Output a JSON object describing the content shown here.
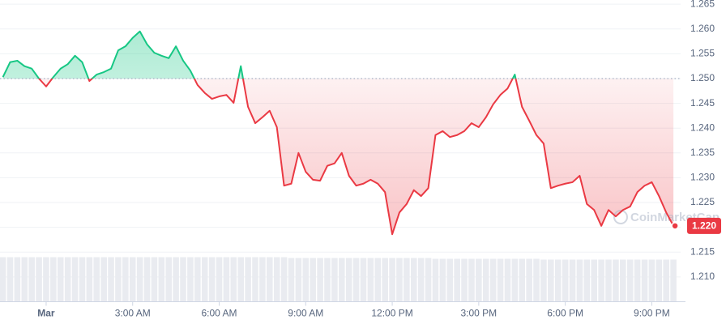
{
  "chart_data": {
    "type": "line",
    "baseline": 1.25,
    "watermark": "CoinMarketCap",
    "up_color": "#16c784",
    "down_color": "#ea3943",
    "volume_color": "#e9ebf0",
    "grid": true,
    "xlim": [
      -1.6,
      22
    ],
    "ylim": [
      1.205,
      1.266
    ],
    "xticks": [
      {
        "value": 0,
        "label": "Mar"
      },
      {
        "value": 3,
        "label": "3:00 AM"
      },
      {
        "value": 6,
        "label": "6:00 AM"
      },
      {
        "value": 9,
        "label": "9:00 AM"
      },
      {
        "value": 12,
        "label": "12:00 PM"
      },
      {
        "value": 15,
        "label": "3:00 PM"
      },
      {
        "value": 18,
        "label": "6:00 PM"
      },
      {
        "value": 21,
        "label": "9:00 PM"
      }
    ],
    "yticks": [
      {
        "value": 1.21,
        "label": "1.210"
      },
      1.215,
      {
        "value": 1.22,
        "label": "1.220"
      },
      1.225,
      {
        "value": 1.23,
        "label": "1.230"
      },
      1.235,
      {
        "value": 1.24,
        "label": "1.240"
      },
      1.245,
      {
        "value": 1.25,
        "label": "1.250"
      },
      1.255,
      {
        "value": 1.26,
        "label": "1.260"
      },
      1.265
    ],
    "current_price": {
      "value": 1.2203,
      "label": "1.220"
    },
    "x": [
      -1.5,
      -1.25,
      -1,
      -0.75,
      -0.5,
      -0.25,
      0,
      0.25,
      0.5,
      0.75,
      1,
      1.25,
      1.5,
      1.75,
      2,
      2.25,
      2.5,
      2.75,
      3,
      3.25,
      3.5,
      3.75,
      4,
      4.25,
      4.5,
      4.75,
      5,
      5.25,
      5.5,
      5.75,
      6,
      6.25,
      6.5,
      6.75,
      7,
      7.25,
      7.5,
      7.75,
      8,
      8.25,
      8.5,
      8.75,
      9,
      9.25,
      9.5,
      9.75,
      10,
      10.25,
      10.5,
      10.75,
      11,
      11.25,
      11.5,
      11.75,
      12,
      12.25,
      12.5,
      12.75,
      13,
      13.25,
      13.5,
      13.75,
      14,
      14.25,
      14.5,
      14.75,
      15,
      15.25,
      15.5,
      15.75,
      16,
      16.25,
      16.5,
      16.75,
      17,
      17.25,
      17.5,
      17.75,
      18,
      18.25,
      18.5,
      18.75,
      19,
      19.25,
      19.5,
      19.75,
      20,
      20.25,
      20.5,
      20.75,
      21,
      21.25,
      21.5,
      21.75
    ],
    "values": [
      1.2503,
      1.2533,
      1.2536,
      1.2525,
      1.252,
      1.25,
      1.2484,
      1.2503,
      1.252,
      1.2529,
      1.2546,
      1.2533,
      1.2495,
      1.2508,
      1.2513,
      1.252,
      1.2557,
      1.2565,
      1.2582,
      1.2595,
      1.2569,
      1.2552,
      1.2546,
      1.2541,
      1.2565,
      1.2536,
      1.2516,
      1.2487,
      1.2471,
      1.2459,
      1.2464,
      1.2467,
      1.2451,
      1.2525,
      1.2443,
      1.241,
      1.2422,
      1.2435,
      1.2402,
      1.2284,
      1.2288,
      1.235,
      1.2312,
      1.2296,
      1.2294,
      1.2324,
      1.2329,
      1.235,
      1.2304,
      1.2284,
      1.2288,
      1.2296,
      1.2288,
      1.2271,
      1.2186,
      1.223,
      1.2247,
      1.2275,
      1.2263,
      1.2279,
      1.2386,
      1.2394,
      1.2382,
      1.2386,
      1.2394,
      1.241,
      1.2402,
      1.2422,
      1.2448,
      1.2467,
      1.248,
      1.2508,
      1.2443,
      1.2415,
      1.2386,
      1.2369,
      1.2279,
      1.2284,
      1.2288,
      1.2291,
      1.2304,
      1.2247,
      1.2235,
      1.2203,
      1.2235,
      1.2222,
      1.2235,
      1.2242,
      1.2271,
      1.2284,
      1.2291,
      1.2263,
      1.223,
      1.2203
    ],
    "volume": [
      55,
      55,
      55,
      55,
      55,
      55,
      55,
      55,
      55,
      55,
      55,
      55,
      55,
      55,
      55,
      55,
      55,
      55,
      55,
      55,
      55,
      55,
      55,
      55,
      55,
      55,
      55,
      55,
      55,
      55,
      55,
      55,
      55,
      55,
      55,
      55,
      55,
      55,
      55,
      55,
      54,
      54,
      54,
      54,
      54,
      54,
      54,
      54,
      54,
      54,
      54,
      54,
      54,
      54,
      54,
      54,
      54,
      54,
      54,
      54,
      53,
      53,
      53,
      53,
      53,
      53,
      53,
      53,
      53,
      53,
      53,
      53,
      53,
      53,
      53,
      52,
      52,
      52,
      52,
      52,
      52,
      52,
      52,
      52,
      52,
      52,
      52,
      52,
      52,
      52,
      52,
      52,
      52,
      52
    ]
  }
}
